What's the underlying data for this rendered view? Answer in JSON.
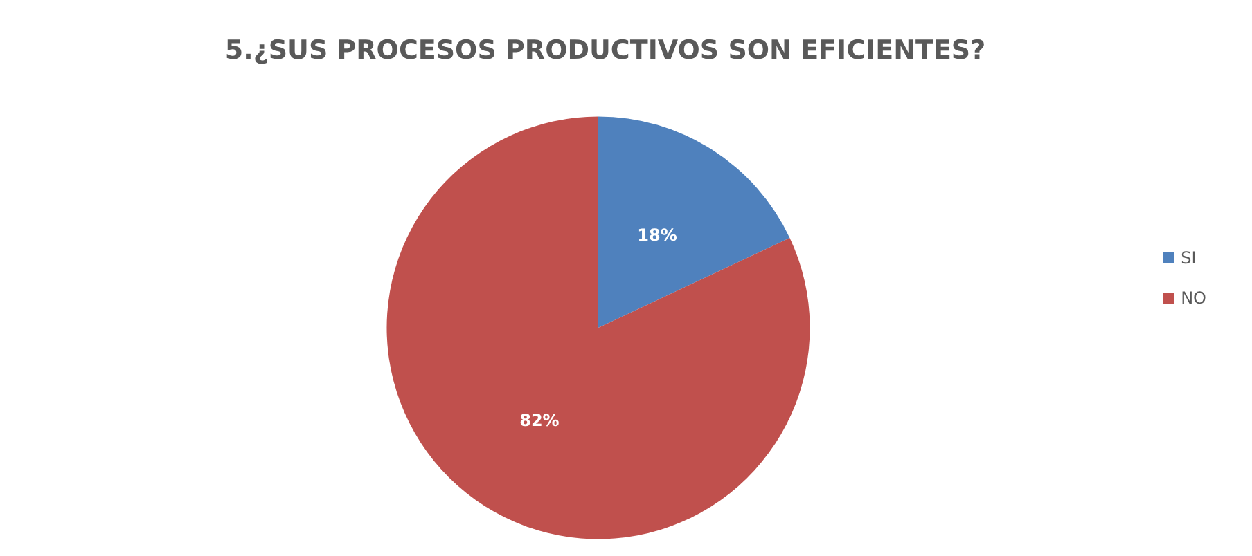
{
  "chart_data": {
    "type": "pie",
    "title": "5.¿SUS PROCESOS PRODUCTIVOS SON EFICIENTES?",
    "categories": [
      "SI",
      "NO"
    ],
    "values": [
      18,
      82
    ],
    "colors": [
      "#4f81bd",
      "#c0504d"
    ],
    "value_labels": [
      "18%",
      "82%"
    ],
    "legend": "right"
  }
}
